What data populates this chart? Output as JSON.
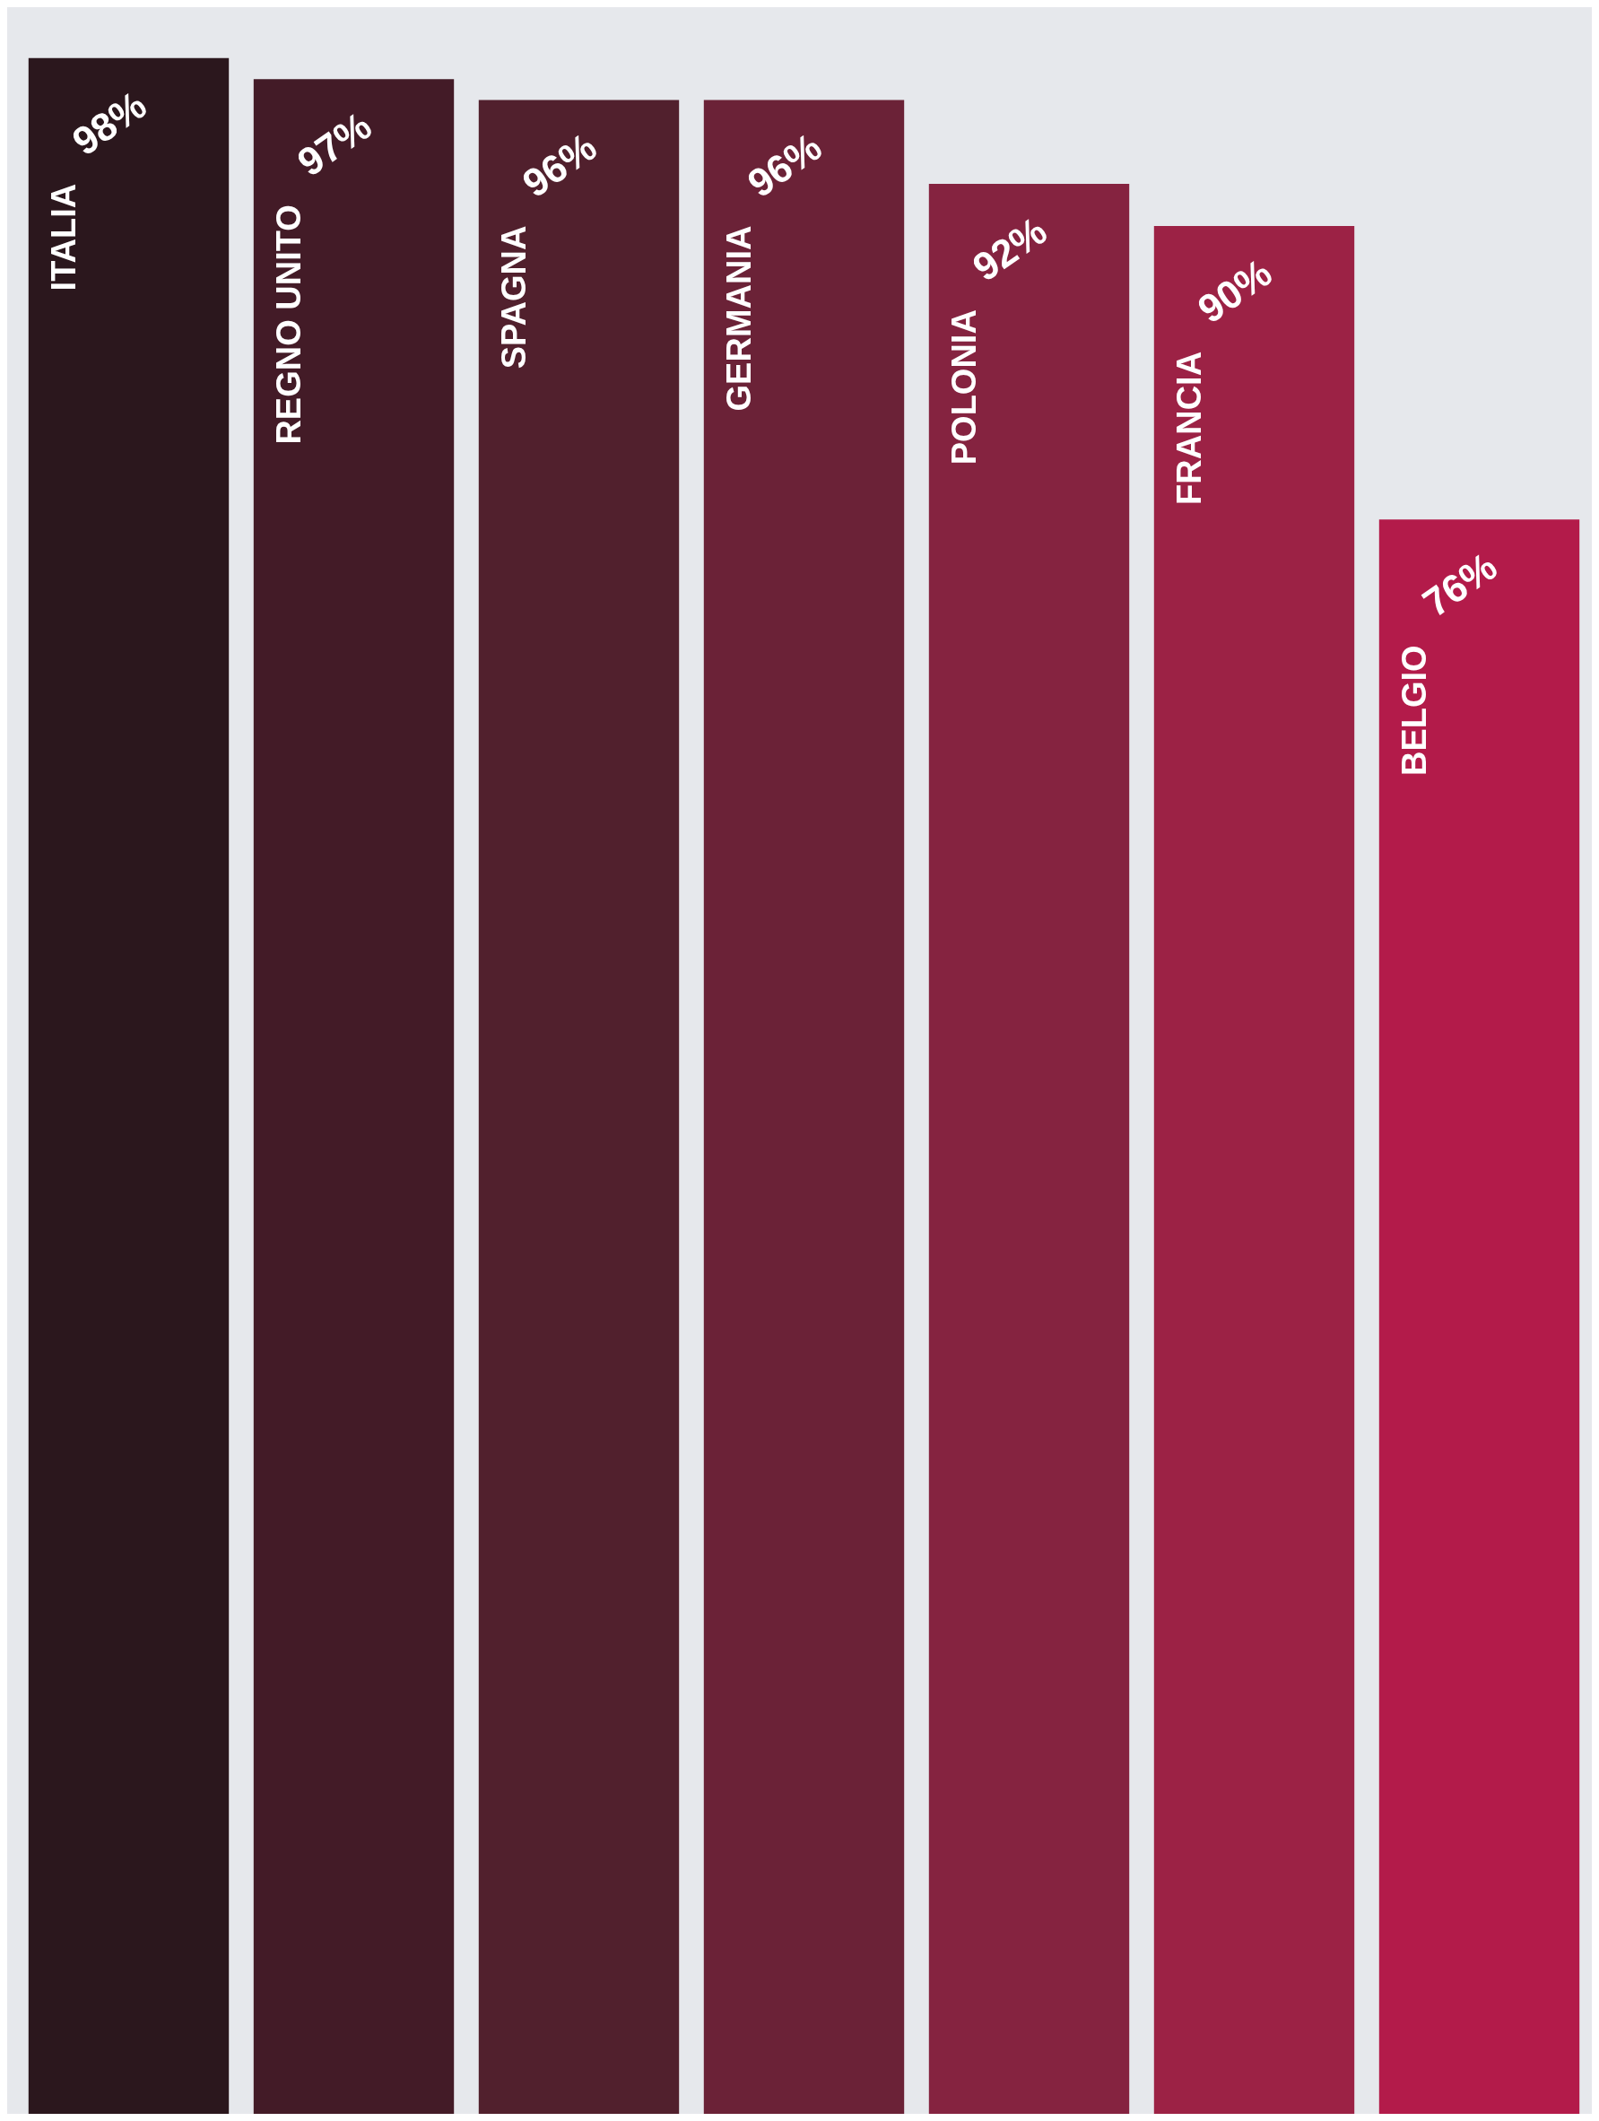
{
  "chart_data": {
    "type": "bar",
    "categories": [
      "ITALIA",
      "REGNO UNITO",
      "SPAGNA",
      "GERMANIA",
      "POLONIA",
      "FRANCIA",
      "BELGIO"
    ],
    "values": [
      98,
      97,
      96,
      96,
      92,
      90,
      76
    ],
    "colors": [
      "#2b171d",
      "#431b27",
      "#51202d",
      "#6b2237",
      "#852340",
      "#9c2245",
      "#b31b4a"
    ],
    "value_labels": [
      "98%",
      "97%",
      "96%",
      "96%",
      "92%",
      "90%",
      "76%"
    ],
    "tick_labels": false
  }
}
